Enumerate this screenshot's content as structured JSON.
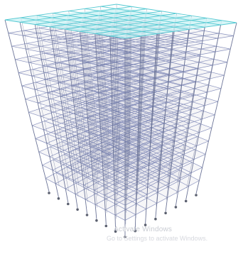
{
  "model": {
    "type": "3D structural frame",
    "stories": 13,
    "bays_front": 7,
    "bays_side": 8,
    "support_type": "pin"
  },
  "colors": {
    "background": "#ffffff",
    "roof_fill": "#c9f2f4",
    "roof_beam": "#54c9d2",
    "beam": "#8790bc",
    "column": "#6d7598",
    "floor_fill": "#c8c8d2",
    "support": "#5a5f6e"
  },
  "watermark": {
    "line1": "Activate Windows",
    "line2": "Go to Settings to activate Windows."
  }
}
